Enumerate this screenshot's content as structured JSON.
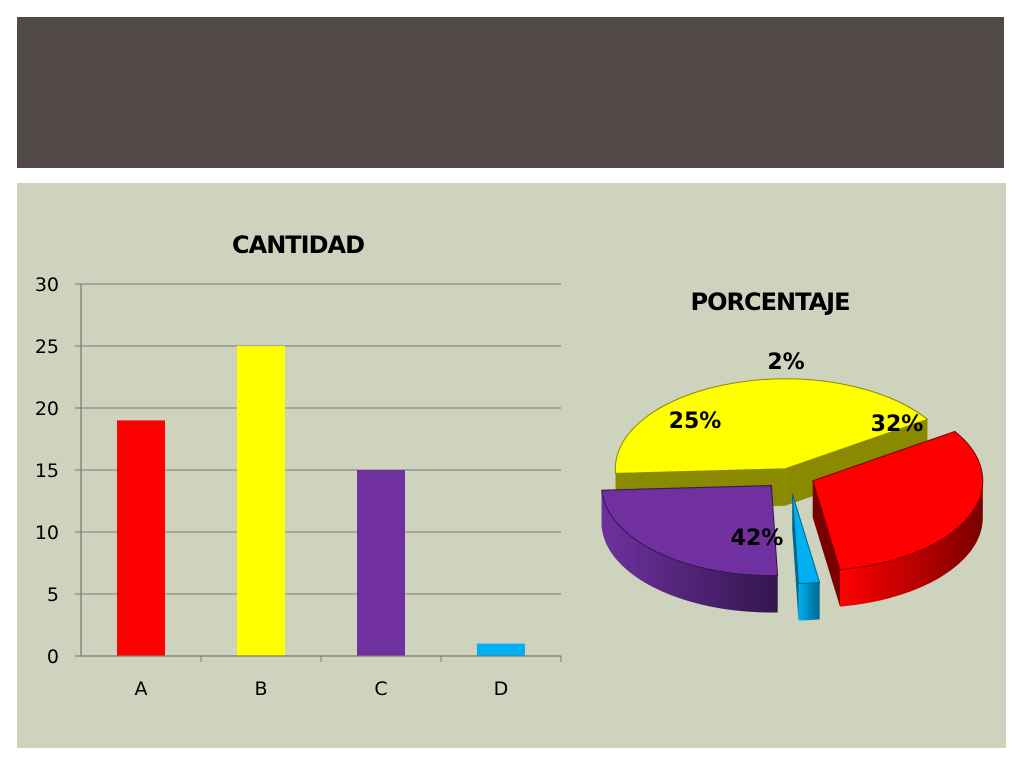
{
  "colors": {
    "header": "#524a49",
    "panel": "#cdd3bd",
    "gridline": "#8c8c8c"
  },
  "chart_data": [
    {
      "type": "bar",
      "title": "CANTIDAD",
      "categories": [
        "A",
        "B",
        "C",
        "D"
      ],
      "values": [
        19,
        25,
        15,
        1
      ],
      "colors": [
        "#ff0000",
        "#ffff00",
        "#7030a0",
        "#00b0f0"
      ],
      "ylim": [
        0,
        30
      ],
      "yticks": [
        0,
        5,
        10,
        15,
        20,
        25,
        30
      ],
      "grid": true,
      "xlabel": "",
      "ylabel": ""
    },
    {
      "type": "pie",
      "title": "PORCENTAJE",
      "style": "3d-exploded",
      "labels": [
        "32%",
        "42%",
        "25%",
        "2%"
      ],
      "values": [
        32,
        42,
        25,
        2
      ],
      "colors": [
        "#ff0000",
        "#ffff00",
        "#7030a0",
        "#00b0f0"
      ],
      "side_colors": [
        "#7a0000",
        "#8a8a00",
        "#32164d",
        "#00688f"
      ]
    }
  ]
}
